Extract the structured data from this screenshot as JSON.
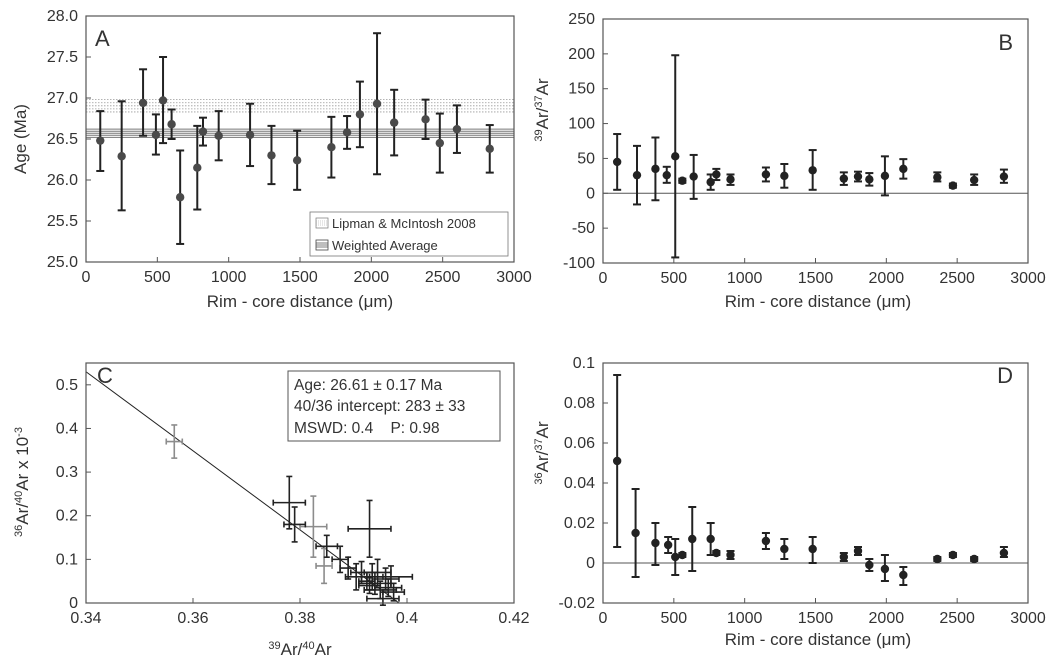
{
  "colors": {
    "axis": "#555555",
    "marker": "#222222",
    "marker_light": "#8c8c8c",
    "band": "#777777"
  },
  "chart_data": [
    {
      "id": "A",
      "type": "scatter",
      "panel_label": "A",
      "xlabel": "Rim - core distance (μm)",
      "ylabel": "Age (Ma)",
      "xlim": [
        0,
        3000
      ],
      "ylim": [
        25.0,
        28.0
      ],
      "xticks": [
        "0",
        "500",
        "1000",
        "1500",
        "2000",
        "2500",
        "3000"
      ],
      "yticks": [
        "25.0",
        "25.5",
        "26.0",
        "26.5",
        "27.0",
        "27.5",
        "28.0"
      ],
      "points": [
        {
          "x": 100,
          "y": 26.48,
          "lo": 26.11,
          "hi": 26.84
        },
        {
          "x": 250,
          "y": 26.29,
          "lo": 25.63,
          "hi": 26.96
        },
        {
          "x": 400,
          "y": 26.94,
          "lo": 26.54,
          "hi": 27.35
        },
        {
          "x": 490,
          "y": 26.55,
          "lo": 26.31,
          "hi": 26.8
        },
        {
          "x": 540,
          "y": 26.97,
          "lo": 26.45,
          "hi": 27.5
        },
        {
          "x": 600,
          "y": 26.68,
          "lo": 26.5,
          "hi": 26.86
        },
        {
          "x": 660,
          "y": 25.79,
          "lo": 25.22,
          "hi": 26.36
        },
        {
          "x": 780,
          "y": 26.15,
          "lo": 25.64,
          "hi": 26.66
        },
        {
          "x": 820,
          "y": 26.59,
          "lo": 26.42,
          "hi": 26.76
        },
        {
          "x": 930,
          "y": 26.54,
          "lo": 26.24,
          "hi": 26.84
        },
        {
          "x": 1150,
          "y": 26.55,
          "lo": 26.17,
          "hi": 26.93
        },
        {
          "x": 1300,
          "y": 26.3,
          "lo": 25.95,
          "hi": 26.66
        },
        {
          "x": 1480,
          "y": 26.24,
          "lo": 25.88,
          "hi": 26.6
        },
        {
          "x": 1720,
          "y": 26.4,
          "lo": 26.03,
          "hi": 26.77
        },
        {
          "x": 1830,
          "y": 26.58,
          "lo": 26.38,
          "hi": 26.78
        },
        {
          "x": 1920,
          "y": 26.8,
          "lo": 26.4,
          "hi": 27.2
        },
        {
          "x": 2040,
          "y": 26.93,
          "lo": 26.07,
          "hi": 27.79
        },
        {
          "x": 2160,
          "y": 26.7,
          "lo": 26.3,
          "hi": 27.1
        },
        {
          "x": 2380,
          "y": 26.74,
          "lo": 26.5,
          "hi": 26.98
        },
        {
          "x": 2480,
          "y": 26.45,
          "lo": 26.09,
          "hi": 26.81
        },
        {
          "x": 2600,
          "y": 26.62,
          "lo": 26.33,
          "hi": 26.91
        },
        {
          "x": 2830,
          "y": 26.38,
          "lo": 26.09,
          "hi": 26.67
        }
      ],
      "bands": [
        {
          "name": "Lipman & McIntosh 2008",
          "lo": 26.83,
          "hi": 26.98,
          "style": "dotted"
        },
        {
          "name": "Weighted Average",
          "lo": 26.52,
          "hi": 26.62,
          "style": "solid"
        }
      ],
      "legend": [
        "Lipman & McIntosh 2008",
        "Weighted Average"
      ],
      "legend_position": "bottom-right"
    },
    {
      "id": "B",
      "type": "scatter",
      "panel_label": "B",
      "xlabel": "Rim - core distance (μm)",
      "ylabel_sup1": "39",
      "ylabel_mid": "Ar/",
      "ylabel_sup2": "37",
      "ylabel_end": "Ar",
      "xlim": [
        0,
        3000
      ],
      "ylim": [
        -100,
        250
      ],
      "xticks": [
        "0",
        "500",
        "1000",
        "1500",
        "2000",
        "2500",
        "3000"
      ],
      "yticks": [
        "-100",
        "-50",
        "0",
        "50",
        "100",
        "150",
        "200",
        "250"
      ],
      "zero_line": 0,
      "points": [
        {
          "x": 100,
          "y": 45,
          "lo": 5,
          "hi": 85
        },
        {
          "x": 240,
          "y": 26,
          "lo": -16,
          "hi": 68
        },
        {
          "x": 370,
          "y": 35,
          "lo": -10,
          "hi": 80
        },
        {
          "x": 450,
          "y": 26,
          "lo": 15,
          "hi": 38
        },
        {
          "x": 510,
          "y": 53,
          "lo": -92,
          "hi": 198
        },
        {
          "x": 560,
          "y": 18,
          "lo": 15,
          "hi": 21
        },
        {
          "x": 640,
          "y": 24,
          "lo": -8,
          "hi": 55
        },
        {
          "x": 760,
          "y": 16,
          "lo": 5,
          "hi": 27
        },
        {
          "x": 800,
          "y": 27,
          "lo": 19,
          "hi": 35
        },
        {
          "x": 900,
          "y": 20,
          "lo": 12,
          "hi": 27
        },
        {
          "x": 1150,
          "y": 27,
          "lo": 17,
          "hi": 37
        },
        {
          "x": 1280,
          "y": 25,
          "lo": 8,
          "hi": 42
        },
        {
          "x": 1480,
          "y": 33,
          "lo": 5,
          "hi": 62
        },
        {
          "x": 1700,
          "y": 21,
          "lo": 12,
          "hi": 30
        },
        {
          "x": 1800,
          "y": 24,
          "lo": 17,
          "hi": 31
        },
        {
          "x": 1880,
          "y": 20,
          "lo": 11,
          "hi": 29
        },
        {
          "x": 1990,
          "y": 25,
          "lo": -3,
          "hi": 53
        },
        {
          "x": 2120,
          "y": 35,
          "lo": 21,
          "hi": 49
        },
        {
          "x": 2360,
          "y": 23,
          "lo": 17,
          "hi": 30
        },
        {
          "x": 2470,
          "y": 11,
          "lo": 8,
          "hi": 14
        },
        {
          "x": 2620,
          "y": 19,
          "lo": 12,
          "hi": 27
        },
        {
          "x": 2830,
          "y": 24,
          "lo": 15,
          "hi": 34
        }
      ]
    },
    {
      "id": "C",
      "type": "scatter",
      "panel_label": "C",
      "xlabel_sup1": "39",
      "xlabel_mid": "Ar/",
      "xlabel_sup2": "40",
      "xlabel_end": "Ar",
      "ylabel_sup1": "36",
      "ylabel_mid": "Ar/",
      "ylabel_sup2": "40",
      "ylabel_end": "Ar x 10",
      "ylabel_sup3": "-3",
      "xlim": [
        0.34,
        0.42
      ],
      "ylim": [
        0,
        0.55
      ],
      "xticks": [
        "0.34",
        "0.36",
        "0.38",
        "0.4",
        "0.42"
      ],
      "yticks": [
        "0",
        "0.1",
        "0.2",
        "0.3",
        "0.4",
        "0.5"
      ],
      "fit_line": {
        "x0": 0.34,
        "y0": 0.53,
        "x1": 0.3985,
        "y1": 0.0
      },
      "annotation": [
        "Age: 26.61 ± 0.17 Ma",
        "40/36 intercept: 283 ± 33",
        "MSWD: 0.4    P: 0.98"
      ],
      "points": [
        {
          "x": 0.3565,
          "y": 0.37,
          "dx": 0.0015,
          "dy": 0.038,
          "shade": "light"
        },
        {
          "x": 0.3825,
          "y": 0.175,
          "dx": 0.0025,
          "dy": 0.07,
          "shade": "light"
        },
        {
          "x": 0.3845,
          "y": 0.085,
          "dx": 0.0015,
          "dy": 0.04,
          "shade": "light"
        },
        {
          "x": 0.378,
          "y": 0.23,
          "dx": 0.003,
          "dy": 0.06,
          "shade": "dark"
        },
        {
          "x": 0.379,
          "y": 0.18,
          "dx": 0.002,
          "dy": 0.04,
          "shade": "dark"
        },
        {
          "x": 0.385,
          "y": 0.13,
          "dx": 0.002,
          "dy": 0.025,
          "shade": "dark"
        },
        {
          "x": 0.3875,
          "y": 0.1,
          "dx": 0.0015,
          "dy": 0.03,
          "shade": "dark"
        },
        {
          "x": 0.389,
          "y": 0.08,
          "dx": 0.0015,
          "dy": 0.025,
          "shade": "dark"
        },
        {
          "x": 0.393,
          "y": 0.17,
          "dx": 0.004,
          "dy": 0.065,
          "shade": "dark"
        },
        {
          "x": 0.3905,
          "y": 0.06,
          "dx": 0.002,
          "dy": 0.03,
          "shade": "dark"
        },
        {
          "x": 0.3915,
          "y": 0.07,
          "dx": 0.002,
          "dy": 0.025,
          "shade": "dark"
        },
        {
          "x": 0.3925,
          "y": 0.05,
          "dx": 0.0015,
          "dy": 0.02,
          "shade": "dark"
        },
        {
          "x": 0.3935,
          "y": 0.06,
          "dx": 0.002,
          "dy": 0.03,
          "shade": "dark"
        },
        {
          "x": 0.394,
          "y": 0.045,
          "dx": 0.003,
          "dy": 0.025,
          "shade": "dark"
        },
        {
          "x": 0.3945,
          "y": 0.07,
          "dx": 0.0025,
          "dy": 0.03,
          "shade": "dark"
        },
        {
          "x": 0.395,
          "y": 0.03,
          "dx": 0.003,
          "dy": 0.02,
          "shade": "dark"
        },
        {
          "x": 0.396,
          "y": 0.055,
          "dx": 0.0025,
          "dy": 0.025,
          "shade": "dark"
        },
        {
          "x": 0.3955,
          "y": 0.01,
          "dx": 0.003,
          "dy": 0.015,
          "shade": "dark"
        },
        {
          "x": 0.3965,
          "y": 0.035,
          "dx": 0.0025,
          "dy": 0.02,
          "shade": "dark"
        },
        {
          "x": 0.397,
          "y": 0.06,
          "dx": 0.004,
          "dy": 0.025,
          "shade": "dark"
        },
        {
          "x": 0.3975,
          "y": 0.025,
          "dx": 0.002,
          "dy": 0.02,
          "shade": "dark"
        },
        {
          "x": 0.393,
          "y": 0.04,
          "dx": 0.002,
          "dy": 0.018,
          "shade": "dark"
        }
      ]
    },
    {
      "id": "D",
      "type": "scatter",
      "panel_label": "D",
      "xlabel": "Rim - core distance (μm)",
      "ylabel_sup1": "36",
      "ylabel_mid": "Ar/",
      "ylabel_sup2": "37",
      "ylabel_end": "Ar",
      "xlim": [
        0,
        3000
      ],
      "ylim": [
        -0.02,
        0.1
      ],
      "xticks": [
        "0",
        "500",
        "1000",
        "1500",
        "2000",
        "2500",
        "3000"
      ],
      "yticks": [
        "-0.02",
        "0",
        "0.02",
        "0.04",
        "0.06",
        "0.08",
        "0.1"
      ],
      "zero_line": 0,
      "points": [
        {
          "x": 100,
          "y": 0.051,
          "lo": 0.008,
          "hi": 0.094
        },
        {
          "x": 230,
          "y": 0.015,
          "lo": -0.007,
          "hi": 0.037
        },
        {
          "x": 370,
          "y": 0.01,
          "lo": -0.001,
          "hi": 0.02
        },
        {
          "x": 460,
          "y": 0.009,
          "lo": 0.005,
          "hi": 0.013
        },
        {
          "x": 510,
          "y": 0.003,
          "lo": -0.006,
          "hi": 0.012
        },
        {
          "x": 560,
          "y": 0.004,
          "lo": 0.003,
          "hi": 0.005
        },
        {
          "x": 630,
          "y": 0.012,
          "lo": -0.004,
          "hi": 0.028
        },
        {
          "x": 760,
          "y": 0.012,
          "lo": 0.004,
          "hi": 0.02
        },
        {
          "x": 800,
          "y": 0.005,
          "lo": 0.004,
          "hi": 0.006
        },
        {
          "x": 900,
          "y": 0.004,
          "lo": 0.002,
          "hi": 0.006
        },
        {
          "x": 1150,
          "y": 0.011,
          "lo": 0.007,
          "hi": 0.015
        },
        {
          "x": 1280,
          "y": 0.007,
          "lo": 0.002,
          "hi": 0.012
        },
        {
          "x": 1480,
          "y": 0.007,
          "lo": 0.0,
          "hi": 0.013
        },
        {
          "x": 1700,
          "y": 0.003,
          "lo": 0.001,
          "hi": 0.005
        },
        {
          "x": 1800,
          "y": 0.006,
          "lo": 0.004,
          "hi": 0.008
        },
        {
          "x": 1880,
          "y": -0.001,
          "lo": -0.004,
          "hi": 0.002
        },
        {
          "x": 1990,
          "y": -0.003,
          "lo": -0.009,
          "hi": 0.004
        },
        {
          "x": 2120,
          "y": -0.006,
          "lo": -0.011,
          "hi": -0.002
        },
        {
          "x": 2360,
          "y": 0.002,
          "lo": 0.001,
          "hi": 0.003
        },
        {
          "x": 2470,
          "y": 0.004,
          "lo": 0.003,
          "hi": 0.005
        },
        {
          "x": 2620,
          "y": 0.002,
          "lo": 0.001,
          "hi": 0.003
        },
        {
          "x": 2830,
          "y": 0.005,
          "lo": 0.003,
          "hi": 0.008
        }
      ]
    }
  ]
}
